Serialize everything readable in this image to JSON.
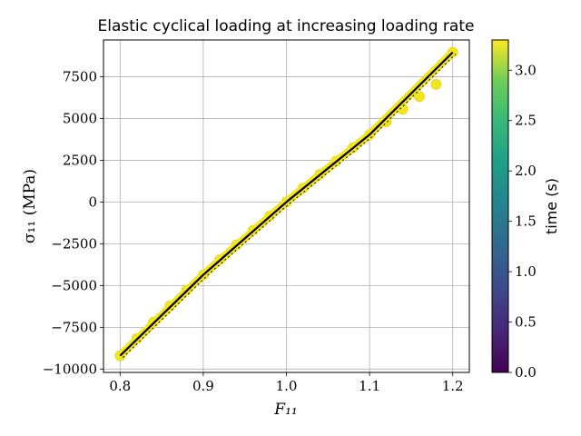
{
  "chart_data": {
    "type": "scatter",
    "title": "Elastic cyclical loading at increasing loading rate",
    "xlabel": "F₁₁",
    "ylabel": "σ₁₁ (MPa)",
    "xlim": [
      0.78,
      1.22
    ],
    "ylim": [
      -10200,
      9700
    ],
    "xticks": [
      0.8,
      0.9,
      1.0,
      1.1,
      1.2
    ],
    "xtick_labels": [
      "0.8",
      "0.9",
      "1.0",
      "1.1",
      "1.2"
    ],
    "yticks": [
      -10000,
      -7500,
      -5000,
      -2500,
      0,
      2500,
      5000,
      7500
    ],
    "ytick_labels": [
      "−10000",
      "−7500",
      "−5000",
      "−2500",
      "0",
      "2500",
      "5000",
      "7500"
    ],
    "grid": true,
    "colorbar": {
      "label": "time (s)",
      "range": [
        0.0,
        3.3
      ],
      "ticks": [
        0.0,
        0.5,
        1.0,
        1.5,
        2.0,
        2.5,
        3.0
      ],
      "tick_labels": [
        "0.0",
        "0.5",
        "1.0",
        "1.5",
        "2.0",
        "2.5",
        "3.0"
      ],
      "colormap": "viridis"
    },
    "series": [
      {
        "kind": "scatter",
        "color_by": "time",
        "x": [
          0.8,
          0.82,
          0.84,
          0.86,
          0.88,
          0.9,
          0.92,
          0.94,
          0.96,
          0.98,
          1.0,
          1.02,
          1.04,
          1.06,
          1.08,
          1.1,
          1.12,
          1.14,
          1.16,
          1.18,
          1.2
        ],
        "y": [
          -9200,
          -8180,
          -7190,
          -6220,
          -5280,
          -4360,
          -3450,
          -2560,
          -1690,
          -840,
          0,
          830,
          1650,
          2450,
          3250,
          4030,
          4800,
          5560,
          6310,
          7040,
          8960
        ]
      },
      {
        "kind": "line",
        "color": "#000000",
        "x": [
          0.8,
          0.9,
          1.0,
          1.1,
          1.2
        ],
        "y": [
          -9200,
          -4360,
          0,
          4030,
          8960
        ]
      }
    ]
  }
}
